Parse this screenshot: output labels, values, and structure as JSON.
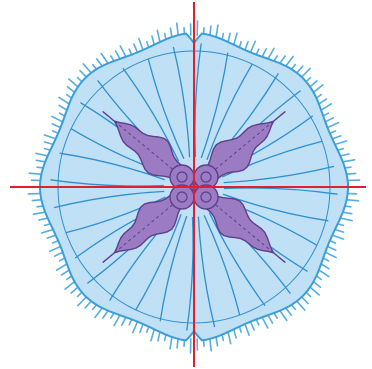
{
  "diagram": {
    "subject": "jellyfish-radial-symmetry",
    "colors": {
      "background": "#ffffff",
      "bell_fill": "#bfe0f5",
      "bell_outline": "#3a9fd8",
      "canal_line": "#2f8fcf",
      "tentacle": "#55aee0",
      "oral_arm_fill": "#9b7bc2",
      "oral_arm_outline": "#5e3f8f",
      "axis_line": "#e0202e"
    },
    "oral_arm_count": 4,
    "symmetry_axes": 2
  }
}
